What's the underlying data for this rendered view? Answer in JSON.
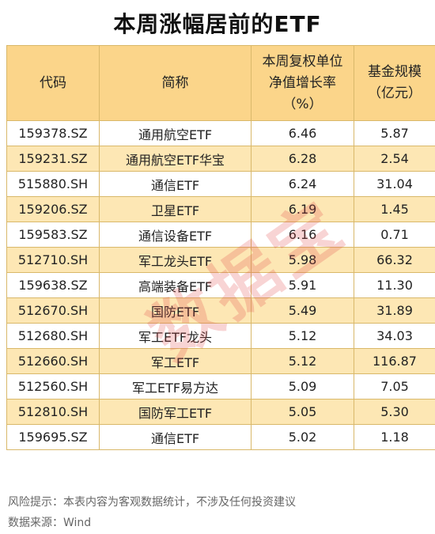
{
  "title": "本周涨幅居前的ETF",
  "headers": {
    "code": "代码",
    "name": "简称",
    "growth": [
      "本周复权单位",
      "净值增长率",
      "（%）"
    ],
    "size": [
      "基金规模",
      "（亿元）"
    ]
  },
  "rows": [
    {
      "code": "159378.SZ",
      "name": "通用航空ETF",
      "growth": "6.46",
      "size": "5.87"
    },
    {
      "code": "159231.SZ",
      "name": "通用航空ETF华宝",
      "growth": "6.28",
      "size": "2.54"
    },
    {
      "code": "515880.SH",
      "name": "通信ETF",
      "growth": "6.24",
      "size": "31.04"
    },
    {
      "code": "159206.SZ",
      "name": "卫星ETF",
      "growth": "6.19",
      "size": "1.45"
    },
    {
      "code": "159583.SZ",
      "name": "通信设备ETF",
      "growth": "6.16",
      "size": "0.71"
    },
    {
      "code": "512710.SH",
      "name": "军工龙头ETF",
      "growth": "5.98",
      "size": "66.32"
    },
    {
      "code": "159638.SZ",
      "name": "高端装备ETF",
      "growth": "5.91",
      "size": "11.30"
    },
    {
      "code": "512670.SH",
      "name": "国防ETF",
      "growth": "5.49",
      "size": "31.89"
    },
    {
      "code": "512680.SH",
      "name": "军工ETF龙头",
      "growth": "5.12",
      "size": "34.03"
    },
    {
      "code": "512660.SH",
      "name": "军工ETF",
      "growth": "5.12",
      "size": "116.87"
    },
    {
      "code": "512560.SH",
      "name": "军工ETF易方达",
      "growth": "5.09",
      "size": "7.05"
    },
    {
      "code": "512810.SH",
      "name": "国防军工ETF",
      "growth": "5.05",
      "size": "5.30"
    },
    {
      "code": "159695.SZ",
      "name": "通信ETF",
      "growth": "5.02",
      "size": "1.18"
    }
  ],
  "watermark": "数据宝",
  "footer": {
    "risk": "风险提示：本表内容为客观数据统计，不涉及任何投资建议",
    "source": "数据来源：Wind"
  }
}
